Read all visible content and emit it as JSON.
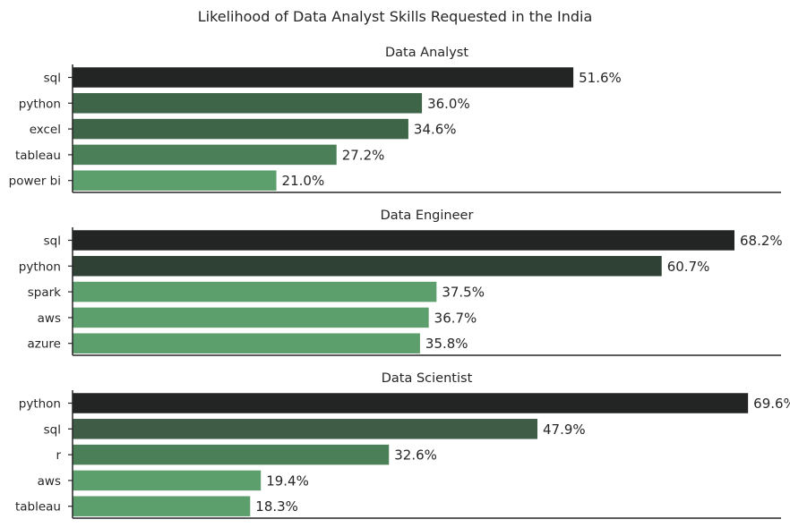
{
  "chart_data": {
    "type": "bar",
    "orientation": "horizontal",
    "title": "Likelihood of Data Analyst Skills Requested in the India",
    "xlim": [
      0,
      73
    ],
    "value_format": "percent_one_decimal",
    "panels": [
      {
        "title": "Data Analyst",
        "categories": [
          "sql",
          "python",
          "excel",
          "tableau",
          "power bi"
        ],
        "values": [
          51.6,
          36.0,
          34.6,
          27.2,
          21.0
        ],
        "labels": [
          "51.6%",
          "36.0%",
          "34.6%",
          "27.2%",
          "21.0%"
        ],
        "colors": [
          "#222524",
          "#3f6549",
          "#3f6549",
          "#4a7f57",
          "#5c9e6c"
        ]
      },
      {
        "title": "Data Engineer",
        "categories": [
          "sql",
          "python",
          "spark",
          "aws",
          "azure"
        ],
        "values": [
          68.2,
          60.7,
          37.5,
          36.7,
          35.8
        ],
        "labels": [
          "68.2%",
          "60.7%",
          "37.5%",
          "36.7%",
          "35.8%"
        ],
        "colors": [
          "#222524",
          "#2f4135",
          "#5c9e6c",
          "#5c9e6c",
          "#5c9e6c"
        ]
      },
      {
        "title": "Data Scientist",
        "categories": [
          "python",
          "sql",
          "r",
          "aws",
          "tableau"
        ],
        "values": [
          69.6,
          47.9,
          32.6,
          19.4,
          18.3
        ],
        "labels": [
          "69.6%",
          "47.9%",
          "32.6%",
          "19.4%",
          "18.3%"
        ],
        "colors": [
          "#222524",
          "#3f5c46",
          "#4a7f57",
          "#5c9e6c",
          "#5c9e6c"
        ]
      }
    ]
  }
}
